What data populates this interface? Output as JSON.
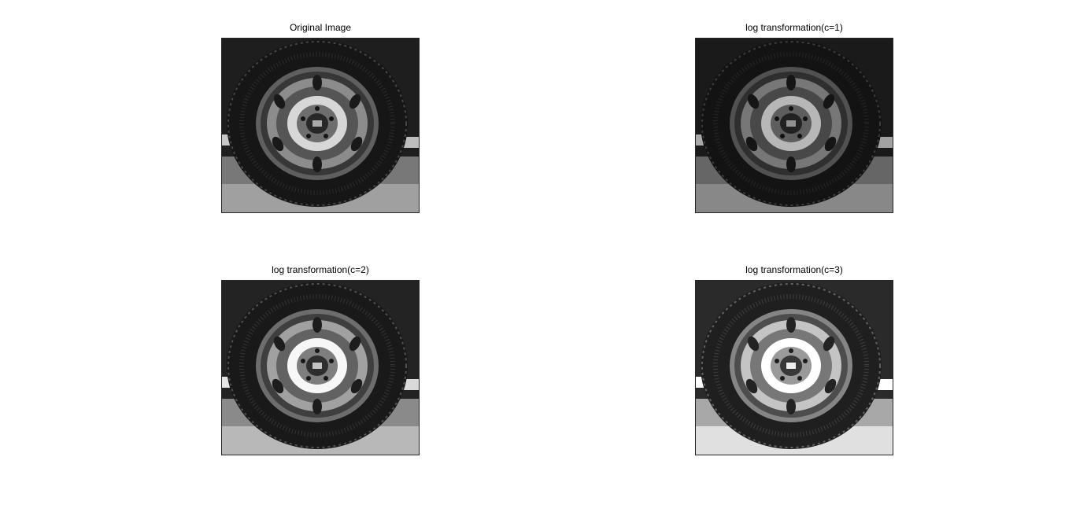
{
  "figure": {
    "panels": [
      {
        "id": "original",
        "title": "Original Image",
        "brightness": 1.0
      },
      {
        "id": "c1",
        "title": "log transformation(c=1)",
        "brightness": 0.85
      },
      {
        "id": "c2",
        "title": "log transformation(c=2)",
        "brightness": 1.15
      },
      {
        "id": "c3",
        "title": "log transformation(c=3)",
        "brightness": 1.4
      }
    ]
  }
}
